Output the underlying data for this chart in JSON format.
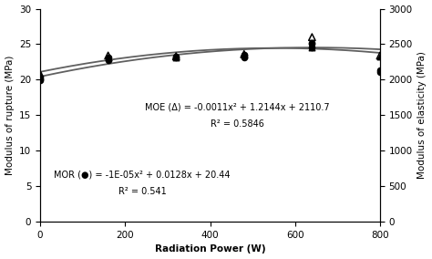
{
  "title": "",
  "xlabel": "Radiation Power (W)",
  "ylabel_left": "Modulus of rupture (MPa)",
  "ylabel_right": "Modulus of elasticity (MPa)",
  "xlim": [
    0,
    800
  ],
  "ylim_left": [
    0,
    30
  ],
  "ylim_right": [
    0,
    3000
  ],
  "xticks": [
    0,
    200,
    400,
    600,
    800
  ],
  "yticks_left": [
    0,
    5,
    10,
    15,
    20,
    25,
    30
  ],
  "yticks_right": [
    0,
    500,
    1000,
    1500,
    2000,
    2500,
    3000
  ],
  "mor_points_x": [
    0,
    0,
    160,
    160,
    320,
    320,
    480,
    480,
    480,
    640,
    640,
    640,
    800,
    800
  ],
  "mor_points_y": [
    19.9,
    20.1,
    22.8,
    23.2,
    23.1,
    23.3,
    23.2,
    23.4,
    23.5,
    24.6,
    25.0,
    25.2,
    21.1,
    21.4
  ],
  "moe_filled_x": [
    0,
    160,
    320,
    480,
    640,
    800
  ],
  "moe_filled_y": [
    2060,
    2320,
    2310,
    2350,
    2450,
    2330
  ],
  "moe_open_x": [
    0,
    160,
    320,
    480,
    640,
    800
  ],
  "moe_open_y": [
    2080,
    2340,
    2330,
    2360,
    2600,
    2340
  ],
  "mor_eq_a": -1e-05,
  "mor_eq_b": 0.0128,
  "mor_eq_c": 20.44,
  "moe_eq_a": -0.0011,
  "moe_eq_b": 1.2144,
  "moe_eq_c": 2110.7,
  "annotation_moe_line1": "MOE (Δ) = -0.0011x² + 1.2144x + 2110.7",
  "annotation_moe_line2": "R² = 0.5846",
  "annotation_mor_line1": "MOR (●) = -1E-05x² + 0.0128x + 20.44",
  "annotation_mor_line2": "R² = 0.541",
  "curve_color": "#606060",
  "bg_color": "#ffffff",
  "font_size": 7.5,
  "annot_fontsize": 7.0
}
